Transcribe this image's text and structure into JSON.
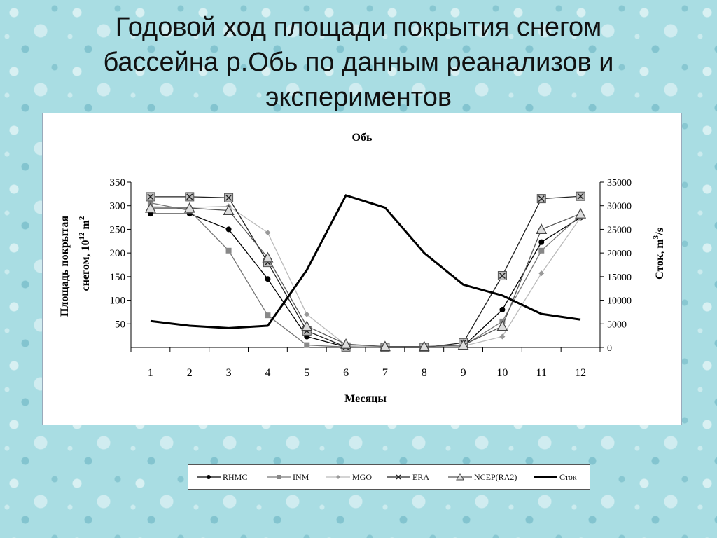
{
  "slide": {
    "title_line1": "Годовой ход площади покрытия снегом",
    "title_line2": "бассейна р.Обь по данным реанализов и",
    "title_line3": "экспериментов"
  },
  "chart_data": {
    "type": "line",
    "title": "Обь",
    "xlabel": "Месяцы",
    "ylabel_left_line1": "Площадь покрытая",
    "ylabel_left_line2": "снегом,  10",
    "ylabel_left_exp": "12",
    "ylabel_left_unit": "m",
    "ylabel_left_unit_exp": "2",
    "ylabel_right": "Сток, m",
    "ylabel_right_exp": "3",
    "ylabel_right_suffix": "/s",
    "x": [
      1,
      2,
      3,
      4,
      5,
      6,
      7,
      8,
      9,
      10,
      11,
      12
    ],
    "x_tick_labels": [
      "1",
      "2",
      "3",
      "4",
      "5",
      "6",
      "7",
      "8",
      "9",
      "10",
      "11",
      "12"
    ],
    "ylim_left": [
      0,
      350
    ],
    "y_ticks_left": [
      50,
      100,
      150,
      200,
      250,
      300,
      350
    ],
    "ylim_right": [
      0,
      35000
    ],
    "y_ticks_right": [
      0,
      5000,
      10000,
      15000,
      20000,
      25000,
      30000,
      35000
    ],
    "grid": false,
    "legend_position": "below",
    "series": [
      {
        "name": "RHMC",
        "axis": "left",
        "marker": "circle",
        "color": "#000000",
        "values": [
          283,
          283,
          250,
          145,
          23,
          1,
          0,
          0,
          2,
          80,
          223,
          275
        ]
      },
      {
        "name": "INM",
        "axis": "left",
        "marker": "square",
        "color": "#888888",
        "values": [
          306,
          290,
          205,
          68,
          5,
          1,
          1,
          1,
          3,
          55,
          205,
          280
        ]
      },
      {
        "name": "MGO",
        "axis": "left",
        "marker": "diamond",
        "color": "#999999",
        "values": [
          298,
          296,
          299,
          243,
          70,
          5,
          2,
          2,
          3,
          23,
          157,
          275
        ]
      },
      {
        "name": "ERA",
        "axis": "left",
        "marker": "x",
        "color": "#333333",
        "values": [
          319,
          319,
          317,
          180,
          35,
          1,
          0,
          0,
          10,
          152,
          315,
          320
        ]
      },
      {
        "name": "NCEP(RA2)",
        "axis": "left",
        "marker": "triangle",
        "color": "#666666",
        "values": [
          295,
          295,
          290,
          190,
          45,
          7,
          2,
          2,
          5,
          45,
          250,
          283
        ]
      },
      {
        "name": "Сток",
        "axis": "right",
        "marker": "none",
        "color": "#000000",
        "values": [
          5600,
          4600,
          4100,
          4600,
          16400,
          32200,
          29600,
          20000,
          13300,
          11000,
          7100,
          5900
        ]
      }
    ]
  }
}
